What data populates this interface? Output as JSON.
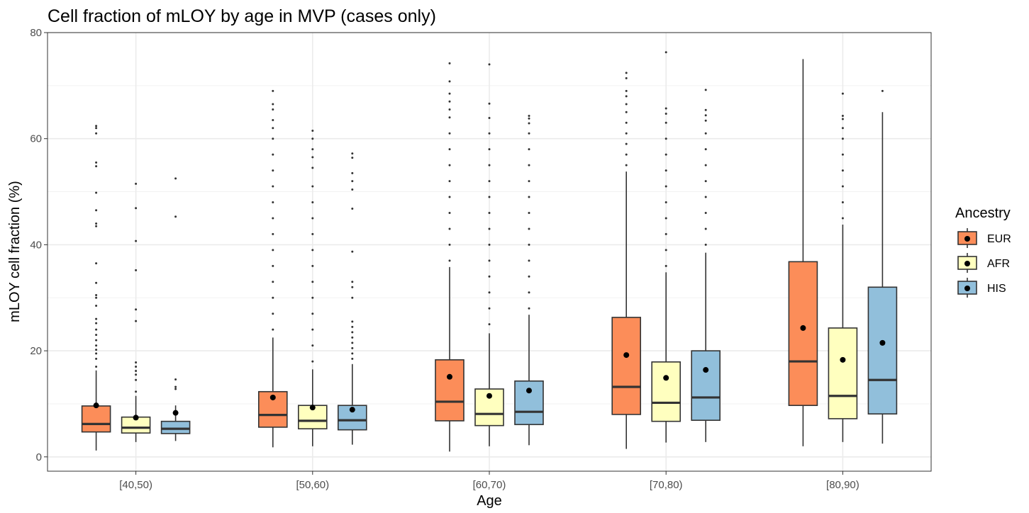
{
  "chart_data": {
    "type": "boxplot",
    "title": "Cell fraction of mLOY by age in MVP (cases only)",
    "xlabel": "Age",
    "ylabel": "mLOY cell fraction (%)",
    "ylim": [
      -2.7,
      80
    ],
    "yticks": [
      0,
      20,
      40,
      60,
      80
    ],
    "grid": true,
    "categories": [
      "[40,50)",
      "[50,60)",
      "[60,70)",
      "[70,80)",
      "[80,90)"
    ],
    "legend": {
      "title": "Ancestry",
      "position": "right"
    },
    "series": [
      {
        "name": "EUR",
        "color": "#FC8D59",
        "boxes": [
          {
            "lower_whisker": 1.2,
            "q1": 4.7,
            "median": 6.2,
            "q3": 9.6,
            "upper_whisker": 16.3,
            "mean": 9.7,
            "outliers": [
              17.0,
              18.5,
              19.5,
              20.2,
              21.0,
              22.0,
              23.0,
              24.0,
              25.2,
              26.0,
              28.5,
              30.0,
              30.5,
              32.8,
              36.5,
              43.5,
              44.0,
              46.5,
              49.8,
              54.8,
              55.5,
              61.0,
              62.0,
              62.4
            ]
          },
          {
            "lower_whisker": 1.8,
            "q1": 5.6,
            "median": 7.9,
            "q3": 12.3,
            "upper_whisker": 22.5,
            "mean": 11.2,
            "outliers": [
              24,
              27,
              30,
              33,
              36,
              39,
              42,
              45,
              48,
              51,
              54,
              57,
              60,
              62,
              63.5,
              65.5,
              66.5,
              69.0
            ]
          },
          {
            "lower_whisker": 1.0,
            "q1": 6.8,
            "median": 10.4,
            "q3": 18.3,
            "upper_whisker": 35.8,
            "mean": 15.1,
            "outliers": [
              37,
              40,
              43,
              46,
              49,
              52,
              55,
              58,
              61,
              64,
              65.5,
              67,
              68.5,
              70.8,
              74.2
            ]
          },
          {
            "lower_whisker": 1.5,
            "q1": 8.0,
            "median": 13.2,
            "q3": 26.3,
            "upper_whisker": 53.8,
            "mean": 19.2,
            "outliers": [
              55,
              57,
              59,
              61,
              63,
              65,
              66.5,
              68,
              69,
              71.4,
              72.4
            ]
          },
          {
            "lower_whisker": 2.0,
            "q1": 9.7,
            "median": 18.0,
            "q3": 36.8,
            "upper_whisker": 75.0,
            "mean": 24.3,
            "outliers": []
          }
        ]
      },
      {
        "name": "AFR",
        "color": "#FFFFBF",
        "boxes": [
          {
            "lower_whisker": 2.8,
            "q1": 4.5,
            "median": 5.5,
            "q3": 7.5,
            "upper_whisker": 11.5,
            "mean": 7.4,
            "outliers": [
              12.3,
              14.5,
              15.5,
              16.2,
              17.0,
              17.8,
              25.6,
              27.8,
              35.2,
              40.7,
              46.9,
              51.5
            ]
          },
          {
            "lower_whisker": 2.0,
            "q1": 5.3,
            "median": 6.8,
            "q3": 9.7,
            "upper_whisker": 16.5,
            "mean": 9.3,
            "outliers": [
              18,
              21,
              24,
              27,
              30,
              33,
              36,
              39,
              42,
              45,
              48,
              51,
              54.5,
              56.5,
              58.0,
              60.0,
              61.5
            ]
          },
          {
            "lower_whisker": 2.0,
            "q1": 5.9,
            "median": 8.1,
            "q3": 12.8,
            "upper_whisker": 23.3,
            "mean": 11.5,
            "outliers": [
              25,
              28,
              31,
              34,
              37,
              40,
              43,
              46,
              49,
              52,
              55,
              58,
              61,
              63.9,
              66.6,
              74.0
            ]
          },
          {
            "lower_whisker": 2.7,
            "q1": 6.7,
            "median": 10.2,
            "q3": 17.9,
            "upper_whisker": 34.8,
            "mean": 14.9,
            "outliers": [
              36,
              39,
              42,
              45,
              48,
              51,
              54,
              57,
              60,
              63,
              64.7,
              65.7,
              76.3
            ]
          },
          {
            "lower_whisker": 2.8,
            "q1": 7.2,
            "median": 11.5,
            "q3": 24.3,
            "upper_whisker": 43.8,
            "mean": 18.3,
            "outliers": [
              45,
              48,
              51,
              54,
              57,
              60,
              62,
              63.7,
              64.3,
              68.5
            ]
          }
        ]
      },
      {
        "name": "HIS",
        "color": "#91BFDB",
        "boxes": [
          {
            "lower_whisker": 3.0,
            "q1": 4.4,
            "median": 5.3,
            "q3": 6.7,
            "upper_whisker": 9.7,
            "mean": 8.3,
            "outliers": [
              12.8,
              13.2,
              14.6,
              45.3,
              52.5
            ]
          },
          {
            "lower_whisker": 2.3,
            "q1": 5.1,
            "median": 6.9,
            "q3": 9.7,
            "upper_whisker": 17.5,
            "mean": 8.9,
            "outliers": [
              18.5,
              19.5,
              20.5,
              21.5,
              22.5,
              23.5,
              24.5,
              25.5,
              30.0,
              32.0,
              33.0,
              38.7,
              46.8,
              50.4,
              52.0,
              53.5,
              56.4,
              57.2
            ]
          },
          {
            "lower_whisker": 2.2,
            "q1": 6.1,
            "median": 8.5,
            "q3": 14.3,
            "upper_whisker": 26.8,
            "mean": 12.5,
            "outliers": [
              28,
              31,
              34,
              37,
              40,
              43,
              46,
              49,
              52,
              55,
              58,
              61,
              62.9,
              63.8,
              64.3
            ]
          },
          {
            "lower_whisker": 2.8,
            "q1": 6.9,
            "median": 11.2,
            "q3": 20.0,
            "upper_whisker": 38.5,
            "mean": 16.4,
            "outliers": [
              40,
              43,
              46,
              49,
              52,
              55,
              58,
              61,
              63.4,
              64.4,
              65.4,
              69.2
            ]
          },
          {
            "lower_whisker": 2.5,
            "q1": 8.1,
            "median": 14.5,
            "q3": 32.0,
            "upper_whisker": 65.0,
            "mean": 21.5,
            "outliers": [
              69.0
            ]
          }
        ]
      }
    ]
  }
}
